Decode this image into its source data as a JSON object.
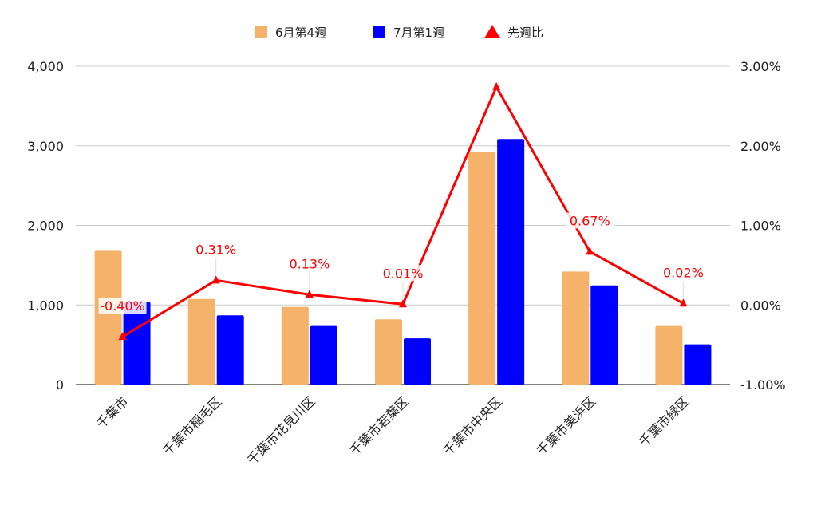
{
  "chart_data": {
    "type": "bar",
    "categories": [
      "千葉市",
      "千葉市稲毛区",
      "千葉市花見川区",
      "千葉市若葉区",
      "千葉市中央区",
      "千葉市美浜区",
      "千葉市緑区"
    ],
    "series": [
      {
        "name": "6月第4週",
        "type": "bar",
        "axis": "left",
        "color": "#f4b26b",
        "values": [
          1690,
          1075,
          975,
          820,
          2920,
          1420,
          735
        ]
      },
      {
        "name": "7月第1週",
        "type": "bar",
        "axis": "left",
        "color": "#0000ff",
        "values": [
          1035,
          870,
          735,
          580,
          3085,
          1245,
          505
        ]
      },
      {
        "name": "先週比",
        "type": "line",
        "axis": "right",
        "color": "#ff0000",
        "values": [
          -0.4,
          0.31,
          0.13,
          0.01,
          2.74,
          0.67,
          0.02
        ],
        "labels": [
          "-0.40%",
          "0.31%",
          "0.13%",
          "0.01%",
          "",
          "0.67%",
          "0.02%"
        ]
      }
    ],
    "y_left": {
      "min": 0,
      "max": 4000,
      "ticks": [
        "0",
        "1,000",
        "2,000",
        "3,000",
        "4,000"
      ]
    },
    "y_right": {
      "min": -1.0,
      "max": 3.0,
      "ticks": [
        "-1.00%",
        "0.00%",
        "1.00%",
        "2.00%",
        "3.00%"
      ]
    },
    "grid": true,
    "legend_position": "top"
  }
}
